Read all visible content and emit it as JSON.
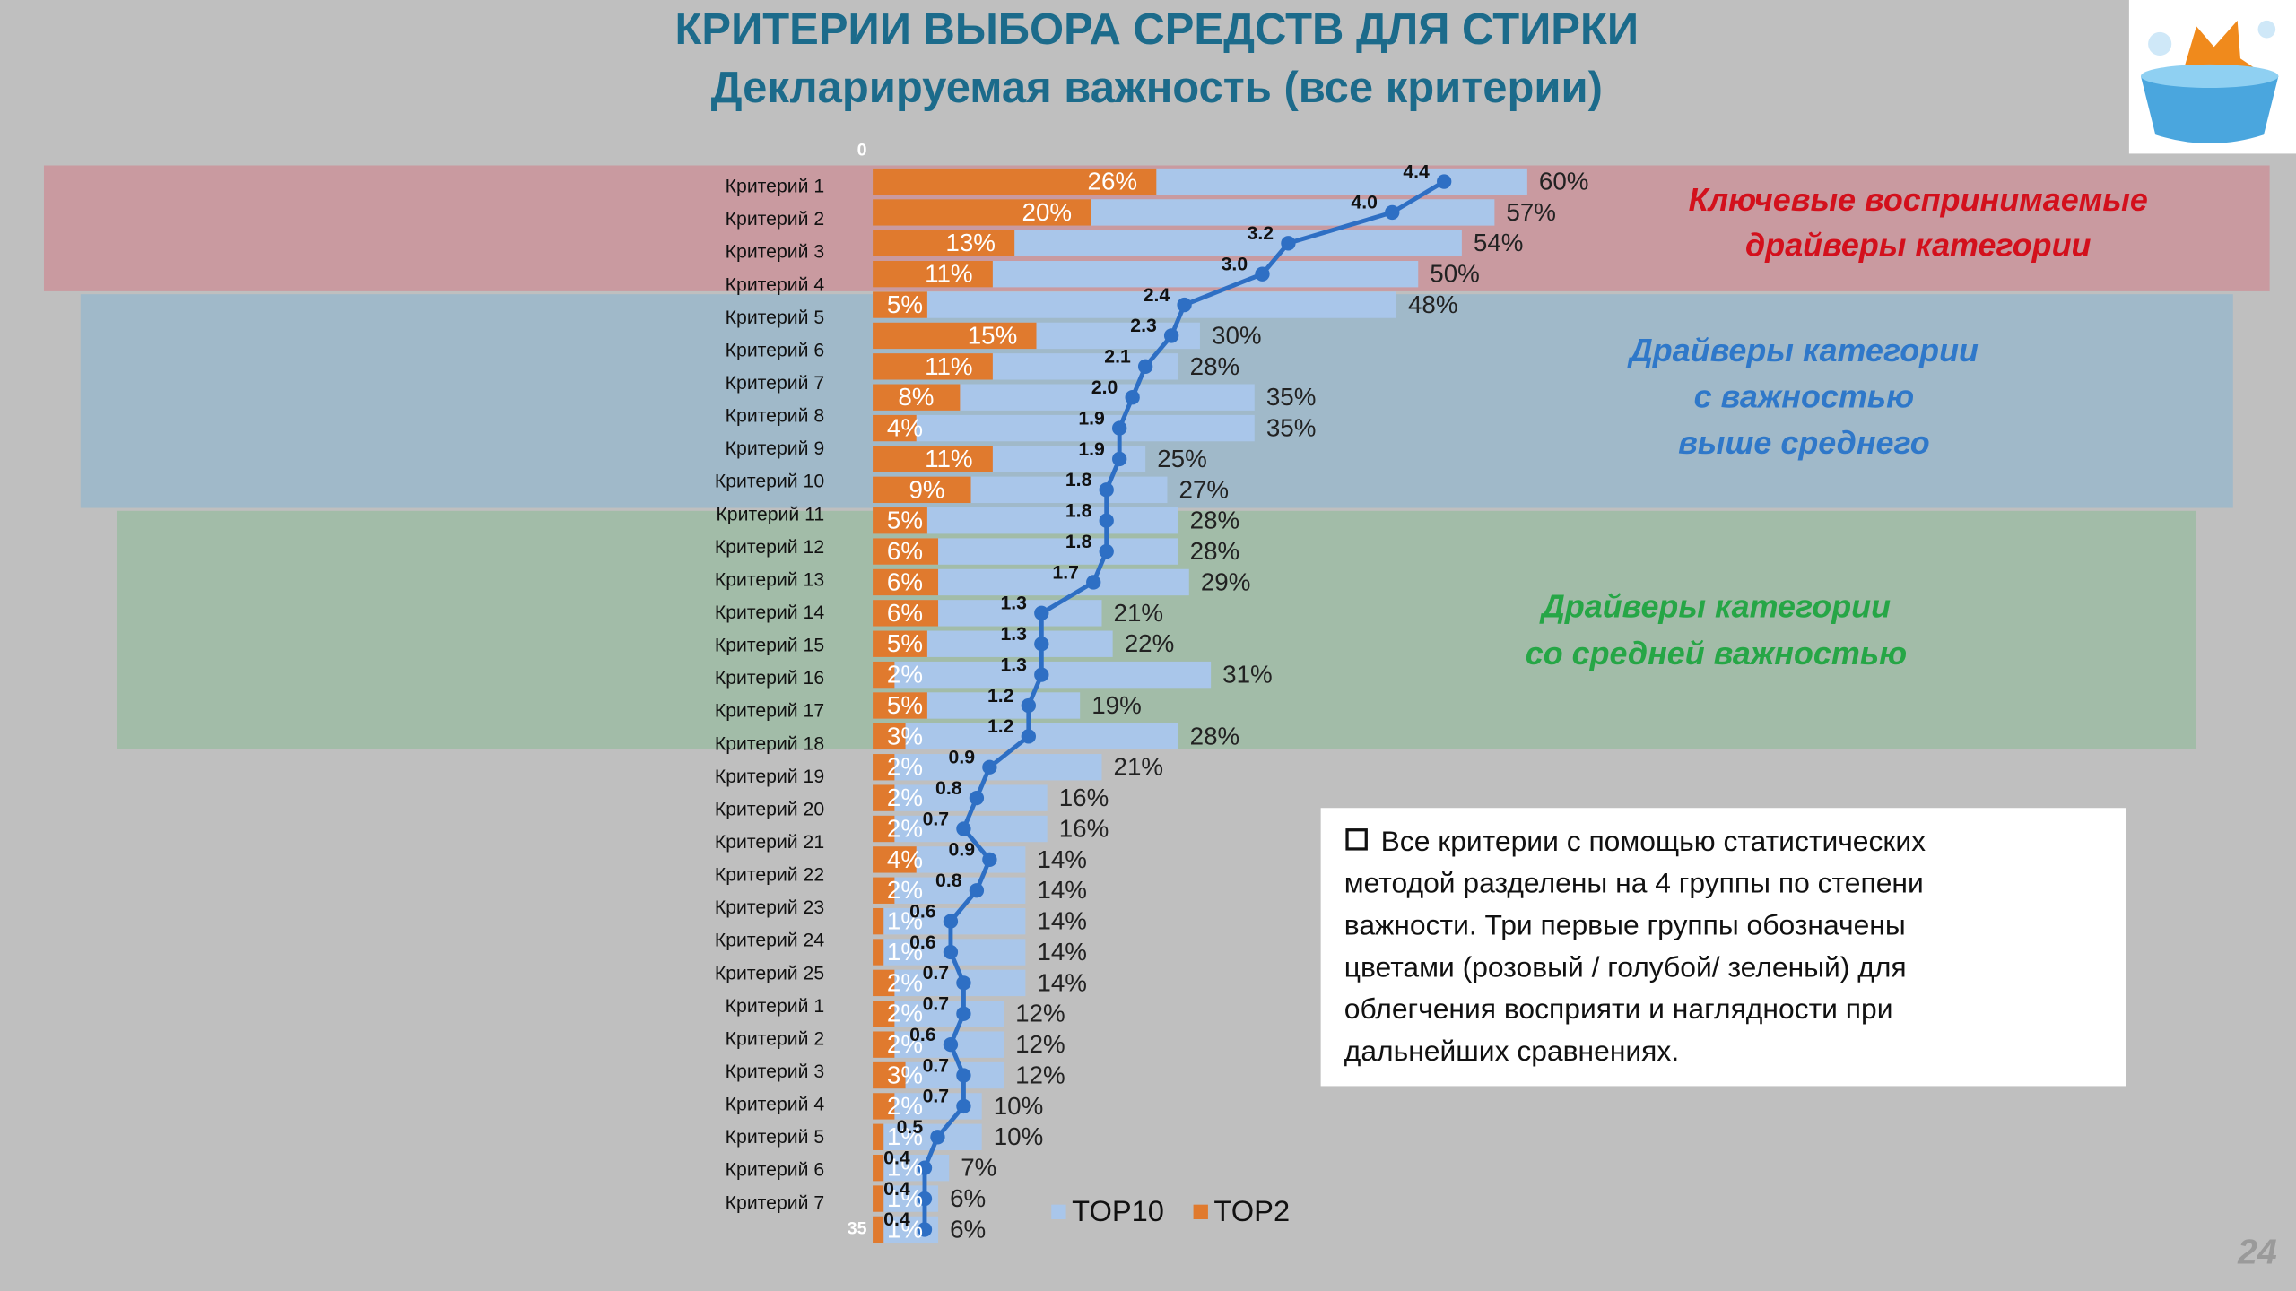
{
  "chart_data": {
    "type": "bar",
    "orientation": "horizontal",
    "title": "КРИТЕРИИ ВЫБОРА СРЕДСТВ ДЛЯ СТИРКИ",
    "subtitle": "Декларируемая важность (все критерии)",
    "categories": [
      "Критерий 1",
      "Критерий 2",
      "Критерий 3",
      "Критерий 4",
      "Критерий 5",
      "Критерий 6",
      "Критерий 7",
      "Критерий 8",
      "Критерий 9",
      "Критерий 10",
      "Критерий 11",
      "Критерий 12",
      "Критерий 13",
      "Критерий 14",
      "Критерий 15",
      "Критерий 16",
      "Критерий 17",
      "Критерий 18",
      "Критерий 19",
      "Критерий 20",
      "Критерий 21",
      "Критерий 22",
      "Критерий 23",
      "Критерий 24",
      "Критерий 25",
      "Критерий 1",
      "Критерий 2",
      "Критерий 3",
      "Критерий 4",
      "Критерий 5",
      "Критерий 6",
      "Критерий 7",
      null,
      null,
      null
    ],
    "xlim": [
      0,
      100
    ],
    "x2lim": [
      0,
      8.4
    ],
    "y2lim": [
      0,
      35
    ],
    "y2ticks": [
      0,
      35
    ],
    "legend": "bottom",
    "series": [
      {
        "name": "TOP10",
        "color": "#a9c6ea",
        "values": [
          60,
          57,
          54,
          50,
          48,
          30,
          28,
          35,
          35,
          25,
          27,
          28,
          28,
          29,
          21,
          22,
          31,
          19,
          28,
          21,
          16,
          16,
          14,
          14,
          14,
          14,
          14,
          12,
          12,
          12,
          10,
          10,
          7,
          6,
          6
        ],
        "value_labels": [
          "60%",
          "57%",
          "54%",
          "50%",
          "48%",
          "30%",
          "28%",
          "35%",
          "35%",
          "25%",
          "27%",
          "28%",
          "28%",
          "29%",
          "21%",
          "22%",
          "31%",
          "19%",
          "28%",
          "21%",
          "16%",
          "16%",
          "14%",
          "14%",
          "14%",
          "14%",
          "14%",
          "12%",
          "12%",
          "12%",
          "10%",
          "10%",
          "7%",
          "6%",
          "6%"
        ]
      },
      {
        "name": "TOP2",
        "color": "#e07a2e",
        "values": [
          26,
          20,
          13,
          11,
          5,
          15,
          11,
          8,
          4,
          11,
          9,
          5,
          6,
          6,
          6,
          5,
          2,
          5,
          3,
          2,
          2,
          2,
          4,
          2,
          1,
          1,
          2,
          2,
          2,
          3,
          2,
          1,
          1,
          1,
          1
        ],
        "value_labels": [
          "26%",
          "20%",
          "13%",
          "11%",
          "5%",
          "15%",
          "11%",
          "8%",
          "4%",
          "11%",
          "9%",
          "5%",
          "6%",
          "6%",
          "6%",
          "5%",
          "2%",
          "5%",
          "3%",
          "2%",
          "2%",
          "2%",
          "4%",
          "2%",
          "1%",
          "1%",
          "2%",
          "2%",
          "2%",
          "3%",
          "2%",
          "1%",
          "1%",
          "1%",
          "1%"
        ]
      },
      {
        "type": "line",
        "axis": "x2",
        "color": "#2e6fc4",
        "values": [
          4.4,
          4.0,
          3.2,
          3.0,
          2.4,
          2.3,
          2.1,
          2.0,
          1.9,
          1.9,
          1.8,
          1.8,
          1.8,
          1.7,
          1.3,
          1.3,
          1.3,
          1.2,
          1.2,
          0.9,
          0.8,
          0.7,
          0.9,
          0.8,
          0.6,
          0.6,
          0.7,
          0.7,
          0.6,
          0.7,
          0.7,
          0.5,
          0.4,
          0.4,
          0.4
        ],
        "value_labels": [
          "4.4",
          "4.0",
          "3.2",
          "3.0",
          "2.4",
          "2.3",
          "2.1",
          "2.0",
          "1.9",
          "1.9",
          "1.8",
          "1.8",
          "1.8",
          "1.7",
          "1.3",
          "1.3",
          "1.3",
          "1.2",
          "1.2",
          "0.9",
          "0.8",
          "0.7",
          "0.9",
          "0.8",
          "0.6",
          "0.6",
          "0.7",
          "0.7",
          "0.6",
          "0.7",
          "0.7",
          "0.5",
          "0.4",
          "0.4",
          "0.4"
        ]
      }
    ]
  },
  "groups": [
    {
      "lines": [
        "Ключевые воспринимаемые",
        "драйверы категории"
      ],
      "color": "#d3101c"
    },
    {
      "lines": [
        "Драйверы категории",
        "с важностью",
        "выше среднего"
      ],
      "color": "#2f78c9"
    },
    {
      "lines": [
        "Драйверы категории",
        "со средней важностью"
      ],
      "color": "#26a646"
    }
  ],
  "note": {
    "lines": [
      "Все критерии с помощью статистических",
      "методой разделены на 4 группы по степени",
      "важности. Три первые группы обозначены",
      "цветами (розовый / голубой/ зеленый) для",
      "облегчения восприяти и наглядности при",
      "дальнейших сравнениях."
    ]
  },
  "page_number": "24"
}
